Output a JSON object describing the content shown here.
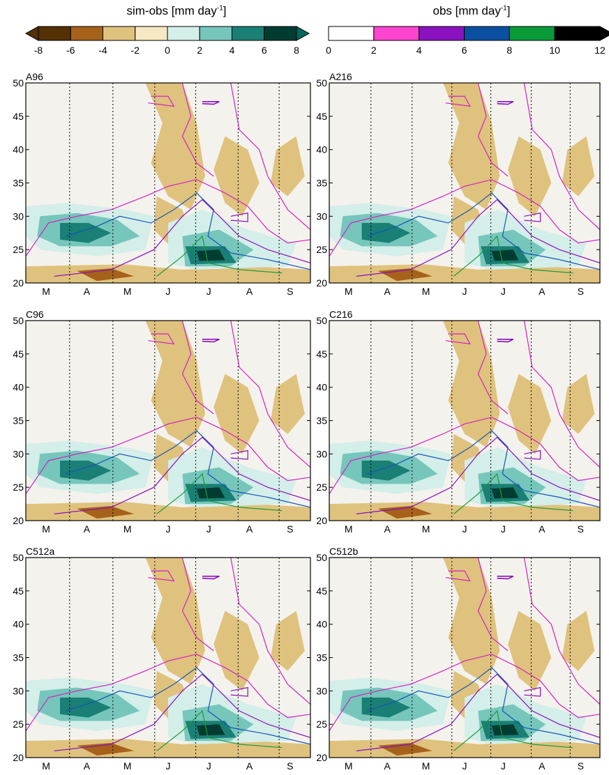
{
  "figure": {
    "colorbars": [
      {
        "id": "diff",
        "title_main": "sim-obs [mm day",
        "title_sup": "-1",
        "title_end": "]",
        "ticks": [
          "-8",
          "-6",
          "-4",
          "-2",
          "0",
          "2",
          "4",
          "6",
          "8"
        ],
        "colors": [
          "#543005",
          "#a6611a",
          "#dfc27d",
          "#f6e8c3",
          "#d4eee9",
          "#76c6bb",
          "#1a7f74",
          "#013c30"
        ],
        "left_extend_color": "#543005",
        "right_extend_color": "#01665e"
      },
      {
        "id": "obs",
        "title_main": "obs [mm day",
        "title_sup": "-1",
        "title_end": "]",
        "ticks": [
          "0",
          "2",
          "4",
          "6",
          "8",
          "10",
          "12"
        ],
        "colors": [
          "#ffffff",
          "#ff44d0",
          "#8b12c0",
          "#0a4fa0",
          "#0a9a3a",
          "#000000"
        ],
        "right_extend_color": "#000000"
      }
    ],
    "panels": [
      {
        "label": "A96"
      },
      {
        "label": "A216"
      },
      {
        "label": "C96"
      },
      {
        "label": "C216"
      },
      {
        "label": "C512a"
      },
      {
        "label": "C512b"
      }
    ],
    "month_labels": [
      "M",
      "A",
      "M",
      "J",
      "J",
      "A",
      "S"
    ],
    "y_tick_labels": [
      "20",
      "25",
      "30",
      "35",
      "40",
      "45",
      "50"
    ]
  },
  "chart_data": {
    "type": "heatmap",
    "description_of_axes": {
      "x": "month",
      "y": "latitude"
    },
    "x_categories": [
      "M",
      "A",
      "M",
      "J",
      "J",
      "A",
      "S"
    ],
    "y_ticks": [
      20,
      25,
      30,
      35,
      40,
      45,
      50
    ],
    "ylim": [
      20,
      50
    ],
    "fill_variable": "sim-obs [mm day-1]",
    "fill_levels": [
      -8,
      -6,
      -4,
      -2,
      0,
      2,
      4,
      6,
      8
    ],
    "contour_variable": "obs [mm day-1]",
    "contour_levels": [
      2,
      4,
      6,
      8,
      10,
      12
    ],
    "panels": [
      "A96",
      "A216",
      "C96",
      "C216",
      "C512a",
      "C512b"
    ],
    "month_boundaries_dotted": true,
    "grid": false
  }
}
